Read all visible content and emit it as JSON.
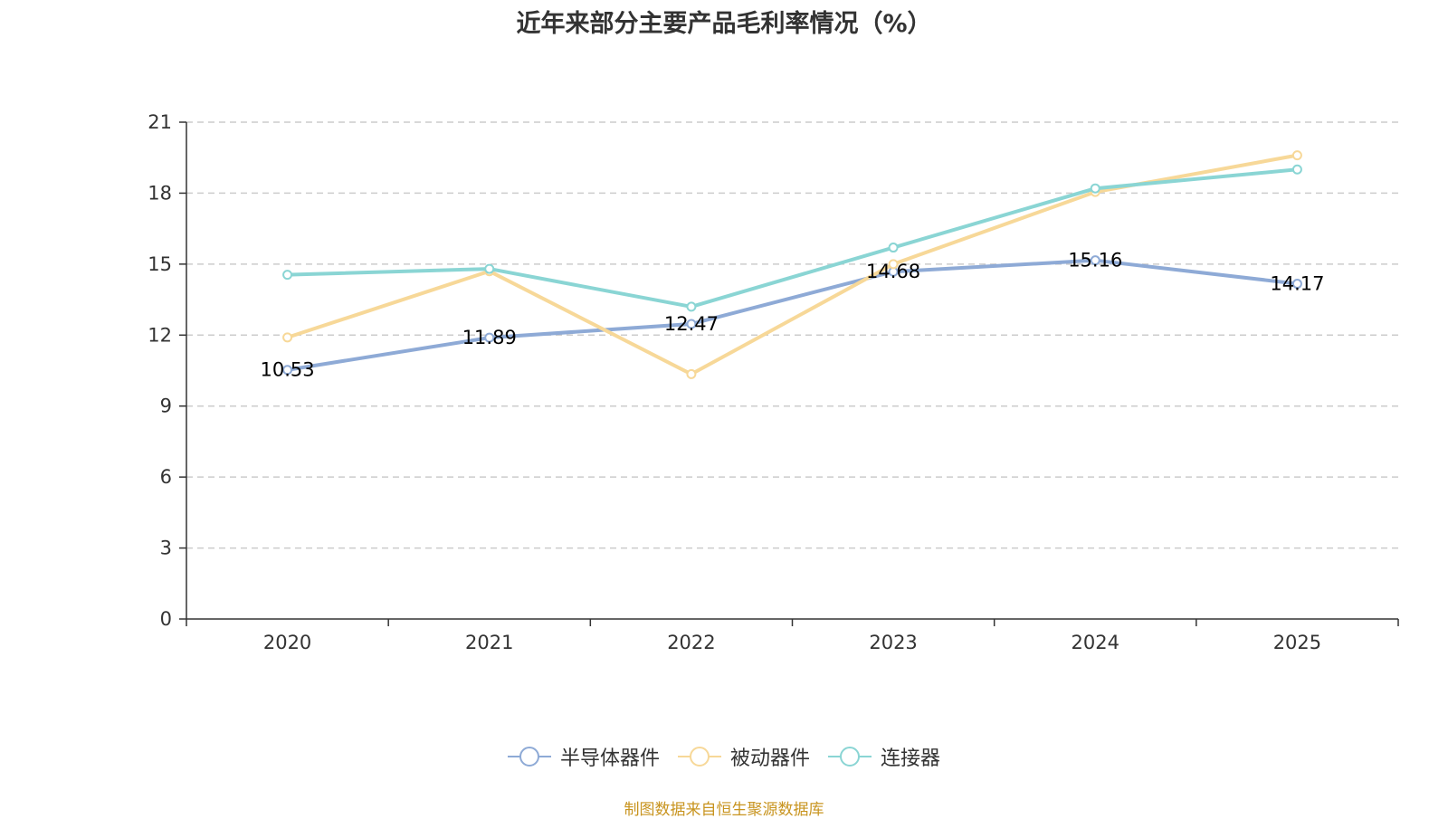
{
  "chart_data": {
    "type": "line",
    "title": "近年来部分主要产品毛利率情况（%）",
    "categories": [
      "2020",
      "2021",
      "2022",
      "2023",
      "2024",
      "2025"
    ],
    "ylim": [
      0,
      21
    ],
    "yticks": [
      0,
      3,
      6,
      9,
      12,
      15,
      18,
      21
    ],
    "grid": true,
    "legend_position": "bottom",
    "series": [
      {
        "name": "半导体器件",
        "color": "#8eaad6",
        "values": [
          10.53,
          11.89,
          12.47,
          14.68,
          15.16,
          14.17
        ],
        "labels": [
          "10.53",
          "11.89",
          "12.47",
          "14.68",
          "15.16",
          "14.17"
        ]
      },
      {
        "name": "被动器件",
        "color": "#f7d898",
        "values": [
          11.9,
          14.7,
          10.35,
          15.0,
          18.05,
          19.6
        ]
      },
      {
        "name": "连接器",
        "color": "#8ad5d4",
        "values": [
          14.55,
          14.8,
          13.2,
          15.7,
          18.2,
          19.0
        ]
      }
    ]
  },
  "source": "制图数据来自恒生聚源数据库"
}
